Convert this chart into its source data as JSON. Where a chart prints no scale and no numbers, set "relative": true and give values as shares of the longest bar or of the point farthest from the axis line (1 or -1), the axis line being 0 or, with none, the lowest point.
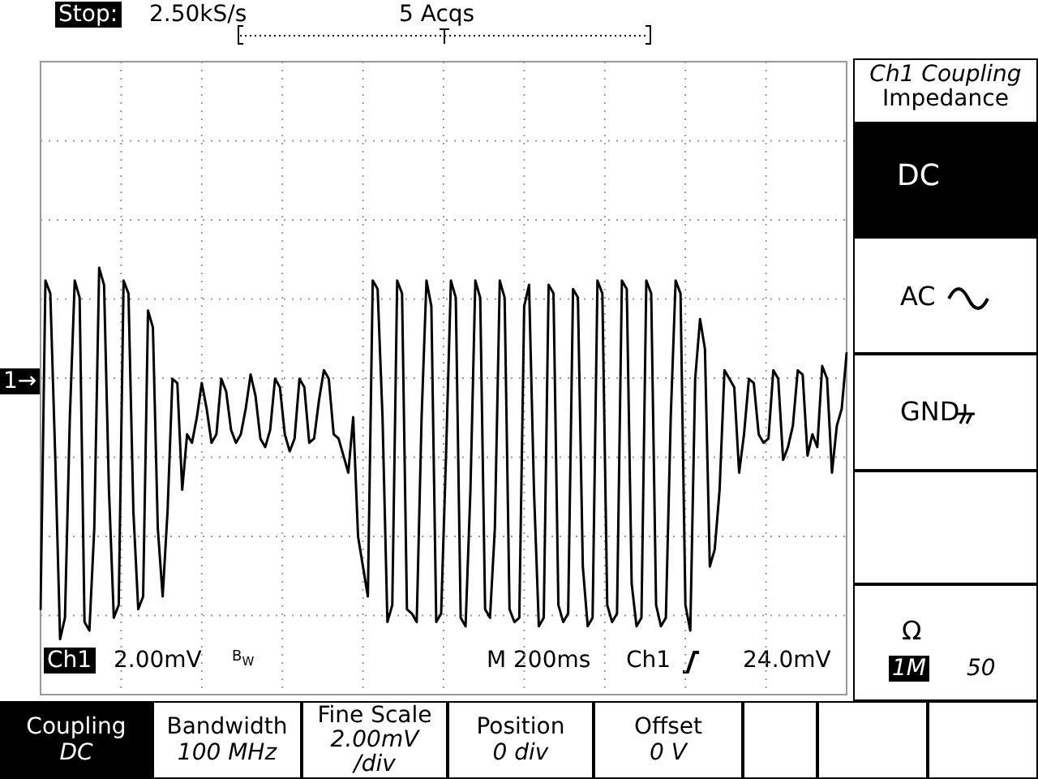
{
  "chart_data": {
    "type": "line",
    "relative": true,
    "color": "#000000",
    "grid": true,
    "categories": [
      null,
      null,
      null,
      null,
      null,
      null,
      null,
      null,
      null,
      null,
      null,
      null,
      null,
      null,
      null,
      null,
      null,
      null,
      null,
      null,
      null,
      null,
      null,
      null,
      null,
      null,
      null,
      null,
      null,
      null,
      null,
      null,
      null,
      null,
      null,
      null,
      null,
      null,
      null,
      null,
      null,
      null,
      null,
      null,
      null,
      null,
      null,
      null,
      null,
      null,
      null,
      null,
      null,
      null,
      null,
      null,
      null,
      null,
      null,
      null,
      null,
      null,
      null,
      null,
      null,
      null,
      null,
      null,
      null,
      null,
      null,
      null,
      null,
      null,
      null,
      null,
      null,
      null,
      null,
      null,
      null,
      null,
      null,
      null,
      null,
      null,
      null,
      null,
      null,
      null,
      null,
      null,
      null,
      null,
      null,
      null,
      null,
      null,
      null,
      null,
      null,
      null,
      null,
      null,
      null,
      null,
      null,
      null,
      null,
      null,
      null,
      null,
      null,
      null,
      null,
      null,
      null,
      null,
      null,
      null,
      null,
      null,
      null,
      null,
      null,
      null,
      null,
      null,
      null,
      null,
      null,
      null,
      null,
      null,
      null,
      null,
      null,
      null,
      null,
      null,
      null,
      null,
      null,
      null,
      null,
      null,
      null,
      null,
      null,
      null,
      null,
      null,
      null,
      null,
      null,
      null,
      null,
      null,
      null,
      null,
      null,
      null,
      null,
      null,
      null,
      null
    ],
    "values": [
      0.2,
      0.97,
      0.94,
      0.56,
      0.13,
      0.18,
      0.65,
      0.97,
      0.93,
      0.17,
      0.15,
      0.39,
      1,
      0.96,
      0.48,
      0.18,
      0.21,
      0.97,
      0.94,
      0.43,
      0.2,
      0.23,
      0.9,
      0.86,
      0.39,
      0.23,
      0.43,
      0.74,
      0.73,
      0.48,
      0.61,
      0.59,
      0.65,
      0.73,
      0.67,
      0.59,
      0.61,
      0.74,
      0.71,
      0.62,
      0.59,
      0.61,
      0.67,
      0.75,
      0.7,
      0.6,
      0.58,
      0.62,
      0.74,
      0.72,
      0.61,
      0.57,
      0.6,
      0.74,
      0.72,
      0.59,
      0.6,
      0.69,
      0.76,
      0.74,
      0.61,
      0.6,
      0.56,
      0.52,
      0.65,
      0.37,
      0.3,
      0.23,
      0.97,
      0.95,
      0.65,
      0.17,
      0.21,
      0.97,
      0.94,
      0.2,
      0.19,
      0.17,
      0.65,
      0.97,
      0.91,
      0.17,
      0.19,
      0.56,
      0.97,
      0.93,
      0.18,
      0.16,
      0.48,
      0.97,
      0.93,
      0.2,
      0.18,
      0.39,
      0.97,
      0.93,
      0.2,
      0.17,
      0.18,
      0.91,
      0.96,
      0.48,
      0.16,
      0.18,
      0.96,
      0.94,
      0.21,
      0.17,
      0.19,
      0.95,
      0.93,
      0.3,
      0.16,
      0.18,
      0.97,
      0.94,
      0.21,
      0.17,
      0.19,
      0.97,
      0.95,
      0.26,
      0.16,
      0.18,
      0.97,
      0.94,
      0.21,
      0.16,
      0.18,
      0.65,
      0.97,
      0.94,
      0.21,
      0.15,
      0.74,
      0.88,
      0.81,
      0.3,
      0.34,
      0.48,
      0.76,
      0.74,
      0.72,
      0.52,
      0.61,
      0.74,
      0.73,
      0.61,
      0.59,
      0.6,
      0.76,
      0.74,
      0.55,
      0.58,
      0.63,
      0.76,
      0.75,
      0.56,
      0.61,
      0.58,
      0.77,
      0.74,
      0.52,
      0.63,
      0.67,
      0.8
    ],
    "annotations": [
      "Stop:",
      "2.50kS/s",
      "5 Acqs",
      "1→",
      "Ch1",
      "2.00mV",
      "B$_{W}$",
      "M 200ms",
      "Ch1",
      "24.0mV",
      "Ch1 Coupling",
      "Impedance",
      "DC",
      "AC",
      "GND",
      "Ω",
      "1M",
      "50",
      "Coupling",
      "DC",
      "Bandwidth",
      "100 MHz",
      "Fine Scale",
      "2.00mV",
      "/div",
      "Position",
      "0 div",
      "Offset",
      "0 V"
    ]
  }
}
